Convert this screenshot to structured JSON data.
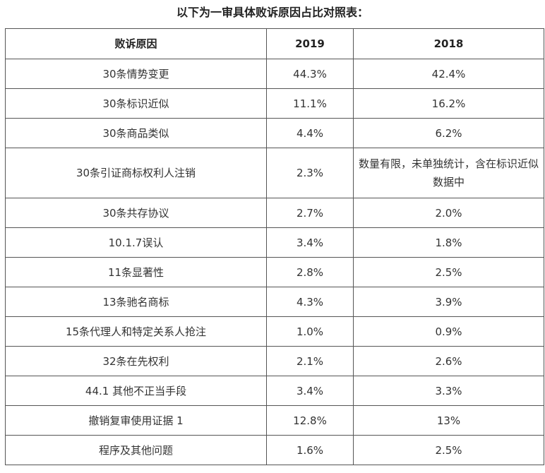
{
  "title": "以下为一审具体败诉原因占比对照表：",
  "table": {
    "headers": [
      "败诉原因",
      "2019",
      "2018"
    ],
    "rows": [
      [
        "30条情势变更",
        "44.3%",
        "42.4%"
      ],
      [
        "30条标识近似",
        "11.1%",
        "16.2%"
      ],
      [
        "30条商品类似",
        "4.4%",
        "6.2%"
      ],
      [
        "30条引证商标权利人注销",
        "2.3%",
        "数量有限，未单独统计，含在标识近似数据中"
      ],
      [
        "30条共存协议",
        "2.7%",
        "2.0%"
      ],
      [
        "10.1.7误认",
        "3.4%",
        "1.8%"
      ],
      [
        "11条显著性",
        "2.8%",
        "2.5%"
      ],
      [
        "13条驰名商标",
        "4.3%",
        "3.9%"
      ],
      [
        "15条代理人和特定关系人抢注",
        "1.0%",
        "0.9%"
      ],
      [
        "32条在先权利",
        "2.1%",
        "2.6%"
      ],
      [
        "44.1 其他不正当手段",
        "3.4%",
        "3.3%"
      ],
      [
        "撤销复审使用证据 1",
        "12.8%",
        "13%"
      ],
      [
        "程序及其他问题",
        "1.6%",
        "2.5%"
      ]
    ]
  }
}
